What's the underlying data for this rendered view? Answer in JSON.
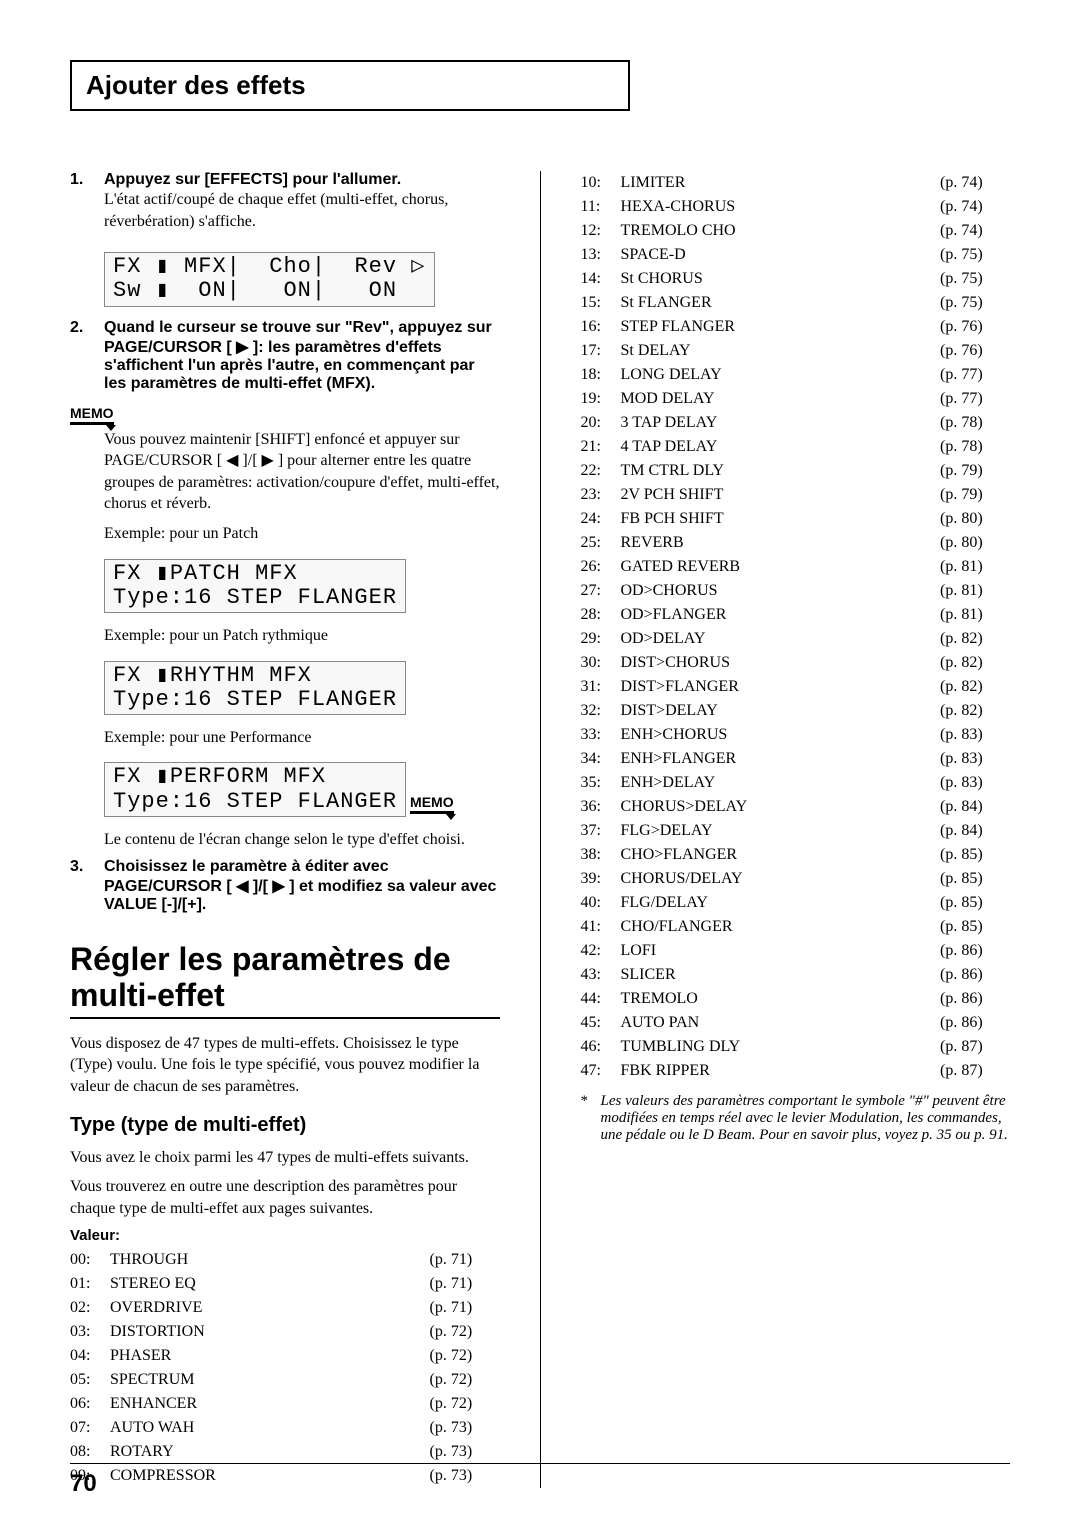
{
  "header_title": "Ajouter des effets",
  "steps": [
    {
      "num": "1.",
      "bold": "Appuyez sur [EFFECTS] pour l'allumer.",
      "body": "L'état actif/coupé de chaque effet (multi-effet, chorus, réverbération) s'affiche."
    },
    {
      "num": "2.",
      "bold": "Quand le curseur se trouve sur \"Rev\", appuyez sur PAGE/CURSOR [ ▶ ]: les paramètres d'effets s'affichent l'un après l'autre, en commençant par les paramètres de multi-effet (MFX)."
    },
    {
      "num": "3.",
      "bold": "Choisissez le paramètre à éditer avec PAGE/CURSOR [ ◀ ]/[ ▶ ] et modifiez sa valeur avec VALUE [-]/[+]."
    }
  ],
  "lcd1_l1": "FX ▮ MFX|  Cho|  Rev ▷",
  "lcd1_l2": "Sw ▮  ON|   ON|   ON",
  "memo_label": "MEMO",
  "memo1_text": "Vous pouvez maintenir [SHIFT] enfoncé et appuyer sur PAGE/CURSOR [ ◀ ]/[ ▶ ] pour alterner entre les quatre groupes de paramètres: activation/coupure d'effet, multi-effet, chorus et réverb.",
  "ex_patch": "Exemple: pour un Patch",
  "lcd2_l1": "FX ▮PATCH MFX",
  "lcd2_l2": "Type:16 STEP FLANGER",
  "ex_rhythm": "Exemple: pour un Patch rythmique",
  "lcd3_l1": "FX ▮RHYTHM MFX",
  "lcd3_l2": "Type:16 STEP FLANGER",
  "ex_perf": "Exemple: pour une Performance",
  "lcd4_l1": "FX ▮PERFORM MFX",
  "lcd4_l2": "Type:16 STEP FLANGER",
  "memo2_text": "Le contenu de l'écran change selon le type d'effet choisi.",
  "section_title": "Régler les paramètres de multi-effet",
  "section_body": "Vous disposez de 47 types de multi-effets. Choisissez le type (Type) voulu. Une fois le type spécifié, vous pouvez modifier la valeur de chacun de ses paramètres.",
  "subsection": "Type (type de multi-effet)",
  "sub_body1": "Vous avez le choix parmi les 47 types de multi-effets suivants.",
  "sub_body2": "Vous trouverez en outre une description des paramètres pour chaque type de multi-effet aux pages suivantes.",
  "valeur_label": "Valeur:",
  "effects_left": [
    {
      "n": "00:",
      "name": "THROUGH",
      "p": "(p. 71)"
    },
    {
      "n": "01:",
      "name": "STEREO EQ",
      "p": "(p. 71)"
    },
    {
      "n": "02:",
      "name": "OVERDRIVE",
      "p": "(p. 71)"
    },
    {
      "n": "03:",
      "name": "DISTORTION",
      "p": "(p. 72)"
    },
    {
      "n": "04:",
      "name": "PHASER",
      "p": "(p. 72)"
    },
    {
      "n": "05:",
      "name": "SPECTRUM",
      "p": "(p. 72)"
    },
    {
      "n": "06:",
      "name": "ENHANCER",
      "p": "(p. 72)"
    },
    {
      "n": "07:",
      "name": "AUTO WAH",
      "p": "(p. 73)"
    },
    {
      "n": "08:",
      "name": "ROTARY",
      "p": "(p. 73)"
    },
    {
      "n": "09:",
      "name": "COMPRESSOR",
      "p": "(p. 73)"
    }
  ],
  "effects_right": [
    {
      "n": "10:",
      "name": "LIMITER",
      "p": "(p. 74)"
    },
    {
      "n": "11:",
      "name": "HEXA-CHORUS",
      "p": "(p. 74)"
    },
    {
      "n": "12:",
      "name": "TREMOLO CHO",
      "p": "(p. 74)"
    },
    {
      "n": "13:",
      "name": "SPACE-D",
      "p": "(p. 75)"
    },
    {
      "n": "14:",
      "name": "St CHORUS",
      "p": "(p. 75)"
    },
    {
      "n": "15:",
      "name": "St FLANGER",
      "p": "(p. 75)"
    },
    {
      "n": "16:",
      "name": "STEP FLANGER",
      "p": "(p. 76)"
    },
    {
      "n": "17:",
      "name": "St DELAY",
      "p": "(p. 76)"
    },
    {
      "n": "18:",
      "name": "LONG DELAY",
      "p": "(p. 77)"
    },
    {
      "n": "19:",
      "name": "MOD DELAY",
      "p": "(p. 77)"
    },
    {
      "n": "20:",
      "name": "3 TAP DELAY",
      "p": "(p. 78)"
    },
    {
      "n": "21:",
      "name": "4 TAP DELAY",
      "p": "(p. 78)"
    },
    {
      "n": "22:",
      "name": "TM CTRL DLY",
      "p": "(p. 79)"
    },
    {
      "n": "23:",
      "name": "2V PCH SHIFT",
      "p": "(p. 79)"
    },
    {
      "n": "24:",
      "name": "FB PCH SHIFT",
      "p": "(p. 80)"
    },
    {
      "n": "25:",
      "name": "REVERB",
      "p": "(p. 80)"
    },
    {
      "n": "26:",
      "name": "GATED REVERB",
      "p": "(p. 81)"
    },
    {
      "n": "27:",
      "name": "OD>CHORUS",
      "p": "(p. 81)"
    },
    {
      "n": "28:",
      "name": "OD>FLANGER",
      "p": "(p. 81)"
    },
    {
      "n": "29:",
      "name": "OD>DELAY",
      "p": "(p. 82)"
    },
    {
      "n": "30:",
      "name": "DIST>CHORUS",
      "p": "(p. 82)"
    },
    {
      "n": "31:",
      "name": "DIST>FLANGER",
      "p": "(p. 82)"
    },
    {
      "n": "32:",
      "name": "DIST>DELAY",
      "p": "(p. 82)"
    },
    {
      "n": "33:",
      "name": "ENH>CHORUS",
      "p": "(p. 83)"
    },
    {
      "n": "34:",
      "name": "ENH>FLANGER",
      "p": "(p. 83)"
    },
    {
      "n": "35:",
      "name": "ENH>DELAY",
      "p": "(p. 83)"
    },
    {
      "n": "36:",
      "name": "CHORUS>DELAY",
      "p": "(p. 84)"
    },
    {
      "n": "37:",
      "name": "FLG>DELAY",
      "p": "(p. 84)"
    },
    {
      "n": "38:",
      "name": "CHO>FLANGER",
      "p": "(p. 85)"
    },
    {
      "n": "39:",
      "name": "CHORUS/DELAY",
      "p": "(p. 85)"
    },
    {
      "n": "40:",
      "name": "FLG/DELAY",
      "p": "(p. 85)"
    },
    {
      "n": "41:",
      "name": "CHO/FLANGER",
      "p": "(p. 85)"
    },
    {
      "n": "42:",
      "name": "LOFI",
      "p": "(p. 86)"
    },
    {
      "n": "43:",
      "name": "SLICER",
      "p": "(p. 86)"
    },
    {
      "n": "44:",
      "name": "TREMOLO",
      "p": "(p. 86)"
    },
    {
      "n": "45:",
      "name": "AUTO PAN",
      "p": "(p. 86)"
    },
    {
      "n": "46:",
      "name": "TUMBLING DLY",
      "p": "(p. 87)"
    },
    {
      "n": "47:",
      "name": "FBK RIPPER",
      "p": "(p. 87)"
    }
  ],
  "footnote": "Les valeurs des paramètres comportant le symbole \"#\" peuvent être modifiées en temps réel avec le levier Modulation, les commandes, une pédale ou le D Beam. Pour en savoir plus, voyez p. 35 ou p. 91.",
  "page_number": "70"
}
